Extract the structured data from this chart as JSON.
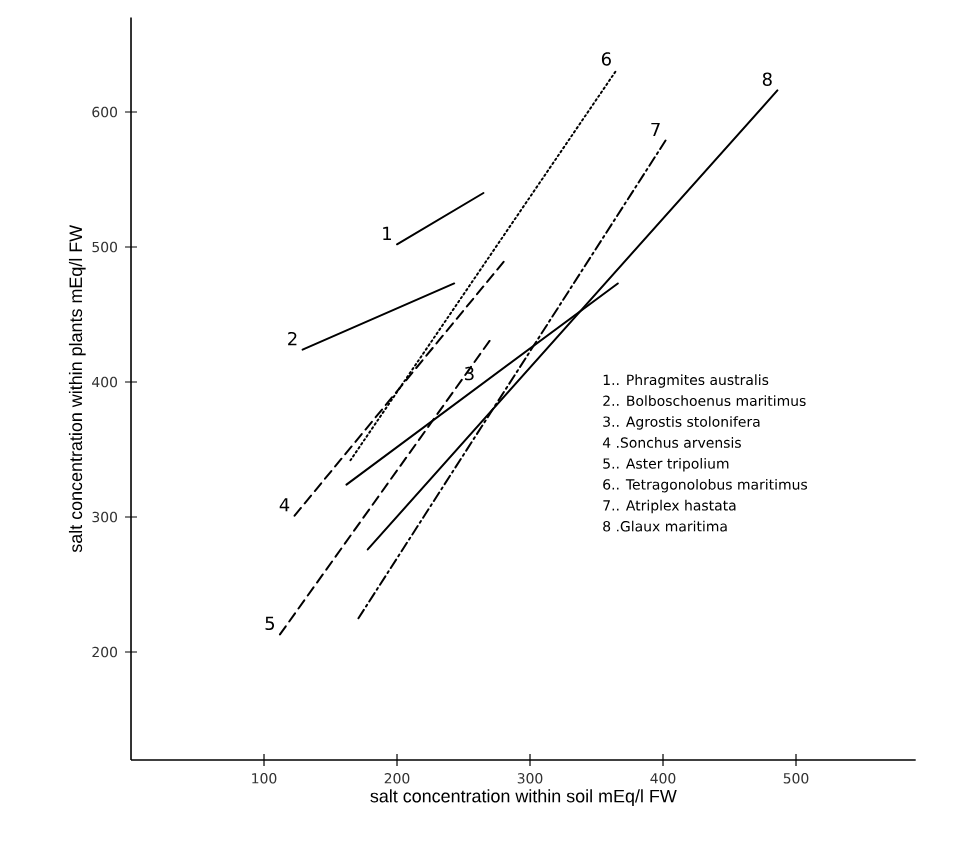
{
  "chart_data": {
    "type": "line",
    "xlabel": "salt concentration within soil  mEq/l FW",
    "ylabel": "salt concentration within plants  mEq/l FW",
    "xlim": [
      0,
      590
    ],
    "ylim": [
      120,
      670
    ],
    "xticks": [
      100,
      200,
      300,
      400,
      500
    ],
    "yticks": [
      200,
      300,
      400,
      500,
      600
    ],
    "grid": false,
    "marker": "none",
    "series": [
      {
        "color": "#000000",
        "line_style": "solid",
        "x": [
          200,
          265
        ],
        "values": [
          502,
          540
        ]
      },
      {
        "color": "#000000",
        "line_style": "solid",
        "x": [
          129,
          243
        ],
        "values": [
          424,
          473
        ]
      },
      {
        "color": "#000000",
        "line_style": "solid",
        "x": [
          162,
          366
        ],
        "values": [
          324,
          473
        ]
      },
      {
        "color": "#000000",
        "line_style": "dashed",
        "x": [
          123,
          281
        ],
        "values": [
          301,
          490
        ]
      },
      {
        "color": "#000000",
        "line_style": "dashed",
        "x": [
          112,
          270
        ],
        "values": [
          213,
          431
        ]
      },
      {
        "color": "#000000",
        "line_style": "dotted",
        "x": [
          165,
          365
        ],
        "values": [
          342,
          631
        ]
      },
      {
        "color": "#000000",
        "line_style": "dashdot",
        "x": [
          171,
          402
        ],
        "values": [
          225,
          579
        ]
      },
      {
        "color": "#000000",
        "line_style": "solid",
        "x": [
          178,
          486
        ],
        "values": [
          276,
          616
        ]
      }
    ],
    "annotations": [
      {
        "text": "1",
        "x": 200,
        "y": 502
      },
      {
        "text": "2",
        "x": 129,
        "y": 424
      },
      {
        "text": "3",
        "x": 262,
        "y": 398
      },
      {
        "text": "4",
        "x": 123,
        "y": 301
      },
      {
        "text": "5",
        "x": 112,
        "y": 213
      },
      {
        "text": "6",
        "x": 365,
        "y": 631
      },
      {
        "text": "7",
        "x": 402,
        "y": 579
      },
      {
        "text": "8",
        "x": 486,
        "y": 616
      },
      "1.. Phragmites australis",
      "2.. Bolboschoenus maritimus",
      "3.. Agrostis stolonifera",
      "4 .Sonchus arvensis",
      "5.. Aster tripolium",
      "6.. Tetragonolobus maritimus",
      "7.. Atriplex hastata",
      "8 .Glaux maritima"
    ]
  }
}
